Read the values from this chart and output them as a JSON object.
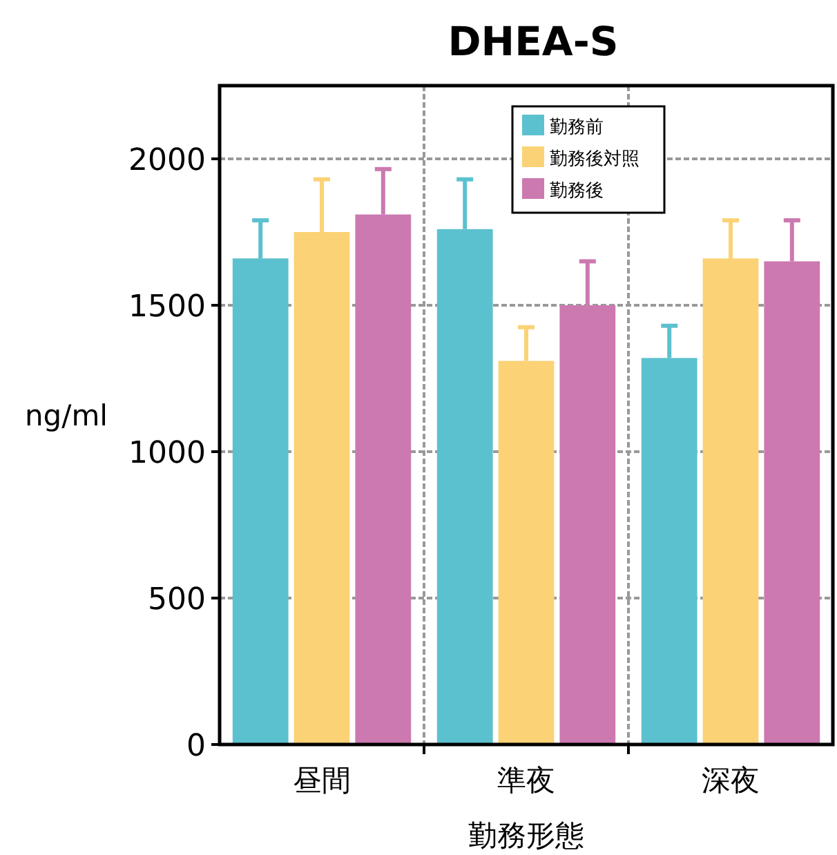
{
  "chart_data": {
    "type": "bar",
    "title": "DHEA-S",
    "xlabel": "勤務形態",
    "ylabel": "ng/ml",
    "categories": [
      "昼間",
      "準夜",
      "深夜"
    ],
    "series": [
      {
        "name": "勤務前",
        "color": "#5cc1cf",
        "values": [
          1660,
          1760,
          1320
        ],
        "errors": [
          [
            1660,
            1790
          ],
          [
            1760,
            1930
          ],
          [
            1320,
            1430
          ]
        ]
      },
      {
        "name": "勤務後対照",
        "color": "#fbd276",
        "values": [
          1750,
          1310,
          1660
        ],
        "errors": [
          [
            1750,
            1930
          ],
          [
            1310,
            1425
          ],
          [
            1660,
            1790
          ]
        ]
      },
      {
        "name": "勤務後",
        "color": "#cc79b0",
        "values": [
          1810,
          1500,
          1650
        ],
        "errors": [
          [
            1810,
            1965
          ],
          [
            1500,
            1650
          ],
          [
            1650,
            1790
          ]
        ]
      }
    ],
    "ylim": [
      0,
      2250
    ],
    "yticks": [
      0,
      500,
      1000,
      1500,
      2000
    ],
    "grid": true,
    "legend": "top"
  }
}
